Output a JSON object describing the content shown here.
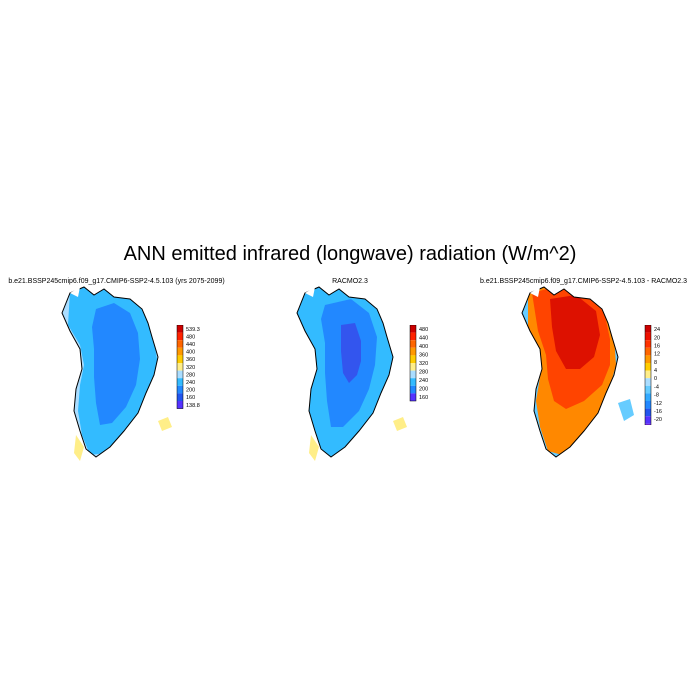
{
  "figure": {
    "title": "ANN emitted infrared (longwave) radiation (W/m^2)"
  },
  "panels": [
    {
      "id": "model",
      "title": "b.e21.BSSP245cmip6.f09_g17.CMIP6-SSP2-4.5.103 (yrs 2075-2099)",
      "colorbar": {
        "labels": [
          "539.3",
          "480",
          "440",
          "400",
          "360",
          "320",
          "280",
          "240",
          "200",
          "160",
          "138.8"
        ],
        "colors": [
          "#cc0000",
          "#ff2200",
          "#ff6600",
          "#ff9900",
          "#ffcc00",
          "#ffee88",
          "#aaddff",
          "#33bbff",
          "#2288ff",
          "#2255ee",
          "#5533ff"
        ]
      }
    },
    {
      "id": "obs",
      "title": "RACMO2.3",
      "colorbar": {
        "labels": [
          "480",
          "440",
          "400",
          "360",
          "320",
          "280",
          "240",
          "200",
          "160"
        ],
        "colors": [
          "#cc0000",
          "#ff2200",
          "#ff6600",
          "#ff9900",
          "#ffcc00",
          "#ffee88",
          "#aaddff",
          "#33bbff",
          "#2288ff",
          "#5533ff"
        ]
      }
    },
    {
      "id": "diff",
      "title": "b.e21.BSSP245cmip6.f09_g17.CMIP6-SSP2-4.5.103 - RACMO2.3",
      "colorbar": {
        "labels": [
          "24",
          "20",
          "16",
          "12",
          "8",
          "4",
          "0",
          "-4",
          "-8",
          "-12",
          "-16",
          "-20",
          "-24"
        ],
        "colors": [
          "#cc0000",
          "#ee1100",
          "#ff3300",
          "#ff6600",
          "#ff9900",
          "#ffcc00",
          "#ffee88",
          "#aaddff",
          "#66ccff",
          "#33aaff",
          "#2288ff",
          "#2255ee",
          "#5533ff",
          "#6622cc"
        ]
      }
    }
  ],
  "map_colors": {
    "model_interior": "#2288ff",
    "model_margin": "#33bbff",
    "model_edge": "#aaddff",
    "obs_core": "#3355ee",
    "obs_interior": "#2288ff",
    "obs_margin": "#33bbff",
    "coast_highlight": "#ffee88",
    "diff_core": "#dd1100",
    "diff_mid": "#ff4400",
    "diff_south": "#ff8800",
    "diff_margin": "#66ccff"
  }
}
